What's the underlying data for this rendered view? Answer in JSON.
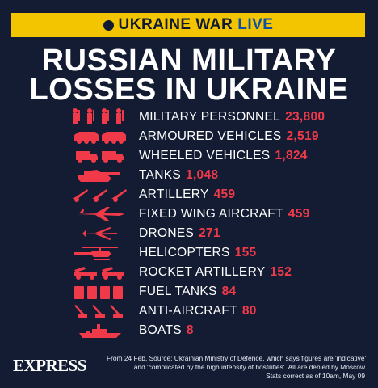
{
  "banner": {
    "prefix": "UKRAINE WAR",
    "live": "LIVE"
  },
  "headline": {
    "line1": "RUSSIAN MILITARY",
    "line2": "LOSSES IN UKRAINE"
  },
  "items": [
    {
      "label": "MILITARY PERSONNEL",
      "value": "23,800",
      "icon": "soldiers-icon"
    },
    {
      "label": "ARMOURED VEHICLES",
      "value": "2,519",
      "icon": "armoured-vehicle-icon"
    },
    {
      "label": "WHEELED VEHICLES",
      "value": "1,824",
      "icon": "truck-icon"
    },
    {
      "label": "TANKS",
      "value": "1,048",
      "icon": "tank-icon"
    },
    {
      "label": "ARTILLERY",
      "value": "459",
      "icon": "artillery-icon"
    },
    {
      "label": "FIXED WING AIRCRAFT",
      "value": "459",
      "icon": "jet-icon"
    },
    {
      "label": "DRONES",
      "value": "271",
      "icon": "drone-icon"
    },
    {
      "label": "HELICOPTERS",
      "value": "155",
      "icon": "helicopter-icon"
    },
    {
      "label": "ROCKET ARTILLERY",
      "value": "152",
      "icon": "rocket-launcher-icon"
    },
    {
      "label": "FUEL TANKS",
      "value": "84",
      "icon": "fuel-tank-icon"
    },
    {
      "label": "ANTI-AIRCRAFT",
      "value": "80",
      "icon": "anti-aircraft-icon"
    },
    {
      "label": "BOATS",
      "value": "8",
      "icon": "boat-icon"
    }
  ],
  "footer": {
    "logo": "EXPRESS",
    "line1": "From 24 Feb. Source: Ukrainian Ministry of Defence, which says figures are 'indicative'",
    "line2": "and 'complicated by the high intensity of hostilities'. All are denied by Moscow",
    "line3": "Stats correct as of  10am, May 09"
  },
  "colors": {
    "background": "#131c33",
    "accent_red": "#f03a4a",
    "banner_yellow": "#f2c500",
    "live_blue": "#0f4fa8"
  }
}
